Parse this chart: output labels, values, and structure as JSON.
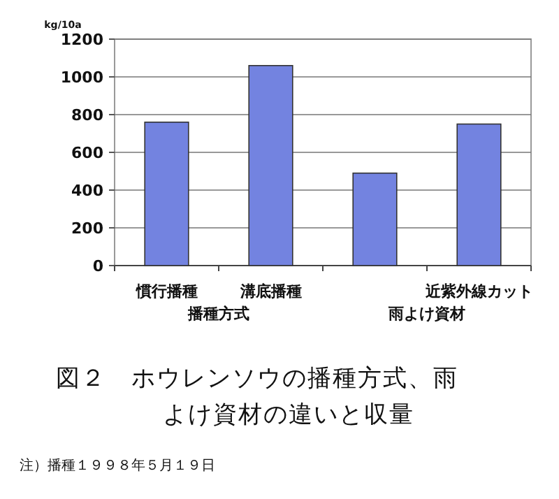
{
  "chart_data": {
    "type": "bar",
    "title": "図２　ホウレンソウの播種方式、雨よけ資材の違いと収量",
    "ylabel": "kg/10a",
    "categories": [
      "慣行播種",
      "溝底播種",
      null,
      "近紫外線カット"
    ],
    "values": [
      760,
      1060,
      490,
      750
    ],
    "color": "#7383e0",
    "ylim": [
      0,
      1200
    ],
    "yticks": [
      0,
      200,
      400,
      600,
      800,
      1000,
      1200
    ],
    "grid": "y",
    "annotations": [
      "播種方式",
      "雨よけ資材",
      "注）播種１９９８年５月１９日"
    ]
  }
}
